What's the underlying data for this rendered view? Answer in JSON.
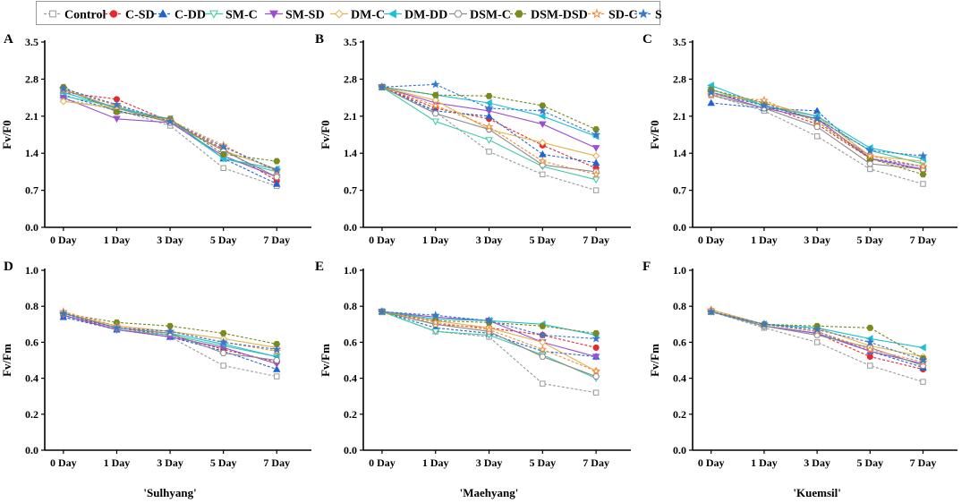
{
  "legend": [
    {
      "label": "Control",
      "color": "#9a9a9a",
      "marker": "square-open",
      "dash": "3,2"
    },
    {
      "label": "C-SD",
      "color": "#e8282b",
      "marker": "circle",
      "dash": "3,2"
    },
    {
      "label": "C-DD",
      "color": "#1f63d4",
      "marker": "triangle",
      "dash": "3,2"
    },
    {
      "label": "SM-C",
      "color": "#3ec9a7",
      "marker": "triangle-down-open",
      "dash": ""
    },
    {
      "label": "SM-SD",
      "color": "#9b4fd1",
      "marker": "triangle-down",
      "dash": ""
    },
    {
      "label": "DM-C",
      "color": "#e6b24a",
      "marker": "diamond-open",
      "dash": ""
    },
    {
      "label": "DM-DD",
      "color": "#1cbfd9",
      "marker": "triangle-left",
      "dash": ""
    },
    {
      "label": "DSM-C",
      "color": "#8a8a8a",
      "marker": "hexagon-open",
      "dash": ""
    },
    {
      "label": "DSM-DSD",
      "color": "#7a8a1e",
      "marker": "hexagon",
      "dash": "3,2"
    },
    {
      "label": "SD-C",
      "color": "#f08a3c",
      "marker": "star-open",
      "dash": "3,2"
    },
    {
      "label": "SD-SD",
      "color": "#3a78c8",
      "marker": "star",
      "dash": "3,2"
    }
  ],
  "chart_data": [
    {
      "panel": "A",
      "type": "line",
      "ylabel": "Fv/F0",
      "ylim": [
        0,
        3.5
      ],
      "yticks": [
        "0.0",
        "0.7",
        "1.4",
        "2.1",
        "2.8",
        "3.5"
      ],
      "categories": [
        "0 Day",
        "1 Day",
        "3 Day",
        "5 Day",
        "7 Day"
      ],
      "series": [
        {
          "name": "Control",
          "values": [
            2.42,
            2.22,
            1.92,
            1.12,
            0.78
          ]
        },
        {
          "name": "C-SD",
          "values": [
            2.55,
            2.42,
            2.0,
            1.48,
            0.88
          ]
        },
        {
          "name": "C-DD",
          "values": [
            2.5,
            2.2,
            2.0,
            1.3,
            0.82
          ]
        },
        {
          "name": "SM-C",
          "values": [
            2.48,
            2.28,
            2.0,
            1.3,
            1.05
          ]
        },
        {
          "name": "SM-SD",
          "values": [
            2.45,
            2.05,
            1.98,
            1.35,
            0.95
          ]
        },
        {
          "name": "DM-C",
          "values": [
            2.38,
            2.25,
            2.0,
            1.45,
            1.1
          ]
        },
        {
          "name": "DM-DD",
          "values": [
            2.55,
            2.25,
            2.05,
            1.3,
            1.1
          ]
        },
        {
          "name": "DSM-C",
          "values": [
            2.6,
            2.25,
            1.98,
            1.45,
            0.95
          ]
        },
        {
          "name": "DSM-DSD",
          "values": [
            2.65,
            2.18,
            2.05,
            1.38,
            1.25
          ]
        },
        {
          "name": "SD-C",
          "values": [
            2.6,
            2.3,
            2.02,
            1.55,
            1.05
          ]
        },
        {
          "name": "SD-SD",
          "values": [
            2.62,
            2.32,
            2.0,
            1.52,
            1.08
          ]
        }
      ]
    },
    {
      "panel": "B",
      "type": "line",
      "ylabel": "Fv/F0",
      "ylim": [
        0,
        3.5
      ],
      "yticks": [
        "0.0",
        "0.7",
        "1.4",
        "2.1",
        "2.8",
        "3.5"
      ],
      "categories": [
        "0 Day",
        "1 Day",
        "3 Day",
        "5 Day",
        "7 Day"
      ],
      "series": [
        {
          "name": "Control",
          "values": [
            2.65,
            2.18,
            1.43,
            1.0,
            0.7
          ]
        },
        {
          "name": "C-SD",
          "values": [
            2.65,
            2.25,
            2.05,
            1.55,
            1.12
          ]
        },
        {
          "name": "C-DD",
          "values": [
            2.65,
            2.2,
            2.1,
            1.38,
            1.22
          ]
        },
        {
          "name": "SM-C",
          "values": [
            2.65,
            2.0,
            1.65,
            1.15,
            0.9
          ]
        },
        {
          "name": "SM-SD",
          "values": [
            2.65,
            2.35,
            2.2,
            1.95,
            1.5
          ]
        },
        {
          "name": "DM-C",
          "values": [
            2.65,
            2.4,
            1.85,
            1.6,
            1.35
          ]
        },
        {
          "name": "DM-DD",
          "values": [
            2.65,
            2.5,
            2.35,
            2.1,
            1.72
          ]
        },
        {
          "name": "DSM-C",
          "values": [
            2.65,
            2.15,
            1.85,
            1.18,
            1.05
          ]
        },
        {
          "name": "DSM-DSD",
          "values": [
            2.65,
            2.5,
            2.48,
            2.3,
            1.85
          ]
        },
        {
          "name": "SD-C",
          "values": [
            2.65,
            2.3,
            1.9,
            1.25,
            1.0
          ]
        },
        {
          "name": "SD-SD",
          "values": [
            2.65,
            2.7,
            2.25,
            2.2,
            1.75
          ]
        }
      ]
    },
    {
      "panel": "C",
      "type": "line",
      "ylabel": "Fv/F0",
      "ylim": [
        0,
        3.5
      ],
      "yticks": [
        "0.0",
        "0.7",
        "1.4",
        "2.1",
        "2.8",
        "3.5"
      ],
      "categories": [
        "0 Day",
        "1 Day",
        "3 Day",
        "5 Day",
        "7 Day"
      ],
      "series": [
        {
          "name": "Control",
          "values": [
            2.5,
            2.2,
            1.72,
            1.1,
            0.82
          ]
        },
        {
          "name": "C-SD",
          "values": [
            2.55,
            2.3,
            1.95,
            1.3,
            1.08
          ]
        },
        {
          "name": "C-DD",
          "values": [
            2.35,
            2.25,
            2.2,
            1.3,
            1.15
          ]
        },
        {
          "name": "SM-C",
          "values": [
            2.6,
            2.3,
            2.05,
            1.45,
            1.2
          ]
        },
        {
          "name": "SM-SD",
          "values": [
            2.55,
            2.25,
            2.05,
            1.3,
            1.1
          ]
        },
        {
          "name": "DM-C",
          "values": [
            2.55,
            2.35,
            2.1,
            1.35,
            1.25
          ]
        },
        {
          "name": "DM-DD",
          "values": [
            2.68,
            2.3,
            2.1,
            1.5,
            1.3
          ]
        },
        {
          "name": "DSM-C",
          "values": [
            2.5,
            2.25,
            1.9,
            1.2,
            1.1
          ]
        },
        {
          "name": "DSM-DSD",
          "values": [
            2.6,
            2.35,
            2.0,
            1.3,
            1.0
          ]
        },
        {
          "name": "SD-C",
          "values": [
            2.5,
            2.4,
            2.0,
            1.35,
            1.15
          ]
        },
        {
          "name": "SD-SD",
          "values": [
            2.55,
            2.3,
            2.05,
            1.45,
            1.35
          ]
        }
      ]
    },
    {
      "panel": "D",
      "type": "line",
      "ylabel": "Fv/Fm",
      "ylim": [
        0,
        1.0
      ],
      "yticks": [
        "0.0",
        "0.2",
        "0.4",
        "0.6",
        "0.8",
        "1.0"
      ],
      "categories": [
        "0 Day",
        "1 Day",
        "3 Day",
        "5 Day",
        "7 Day"
      ],
      "xlabel": "'Sulhyang'",
      "series": [
        {
          "name": "Control",
          "values": [
            0.74,
            0.67,
            0.63,
            0.47,
            0.41
          ]
        },
        {
          "name": "C-SD",
          "values": [
            0.75,
            0.68,
            0.64,
            0.56,
            0.49
          ]
        },
        {
          "name": "C-DD",
          "values": [
            0.74,
            0.67,
            0.63,
            0.55,
            0.45
          ]
        },
        {
          "name": "SM-C",
          "values": [
            0.75,
            0.67,
            0.64,
            0.58,
            0.52
          ]
        },
        {
          "name": "SM-SD",
          "values": [
            0.75,
            0.67,
            0.63,
            0.57,
            0.48
          ]
        },
        {
          "name": "DM-C",
          "values": [
            0.76,
            0.69,
            0.66,
            0.62,
            0.57
          ]
        },
        {
          "name": "DM-DD",
          "values": [
            0.76,
            0.68,
            0.65,
            0.59,
            0.52
          ]
        },
        {
          "name": "DSM-C",
          "values": [
            0.76,
            0.68,
            0.65,
            0.54,
            0.5
          ]
        },
        {
          "name": "DSM-DSD",
          "values": [
            0.76,
            0.71,
            0.69,
            0.65,
            0.59
          ]
        },
        {
          "name": "SD-C",
          "values": [
            0.77,
            0.69,
            0.66,
            0.6,
            0.55
          ]
        },
        {
          "name": "SD-SD",
          "values": [
            0.76,
            0.68,
            0.66,
            0.6,
            0.56
          ]
        }
      ]
    },
    {
      "panel": "E",
      "type": "line",
      "ylabel": "Fv/Fm",
      "ylim": [
        0,
        1.0
      ],
      "yticks": [
        "0.0",
        "0.2",
        "0.4",
        "0.6",
        "0.8",
        "1.0"
      ],
      "categories": [
        "0 Day",
        "1 Day",
        "3 Day",
        "5 Day",
        "7 Day"
      ],
      "xlabel": "'Maehyang'",
      "series": [
        {
          "name": "Control",
          "values": [
            0.77,
            0.66,
            0.63,
            0.37,
            0.32
          ]
        },
        {
          "name": "C-SD",
          "values": [
            0.77,
            0.7,
            0.68,
            0.64,
            0.57
          ]
        },
        {
          "name": "C-DD",
          "values": [
            0.77,
            0.68,
            0.65,
            0.55,
            0.52
          ]
        },
        {
          "name": "SM-C",
          "values": [
            0.77,
            0.66,
            0.64,
            0.53,
            0.4
          ]
        },
        {
          "name": "SM-SD",
          "values": [
            0.77,
            0.74,
            0.72,
            0.6,
            0.52
          ]
        },
        {
          "name": "DM-C",
          "values": [
            0.77,
            0.72,
            0.68,
            0.6,
            0.44
          ]
        },
        {
          "name": "DM-DD",
          "values": [
            0.77,
            0.73,
            0.72,
            0.7,
            0.64
          ]
        },
        {
          "name": "DSM-C",
          "values": [
            0.77,
            0.7,
            0.66,
            0.52,
            0.41
          ]
        },
        {
          "name": "DSM-DSD",
          "values": [
            0.77,
            0.72,
            0.71,
            0.69,
            0.65
          ]
        },
        {
          "name": "SD-C",
          "values": [
            0.77,
            0.71,
            0.67,
            0.56,
            0.44
          ]
        },
        {
          "name": "SD-SD",
          "values": [
            0.77,
            0.75,
            0.72,
            0.64,
            0.62
          ]
        }
      ]
    },
    {
      "panel": "F",
      "type": "line",
      "ylabel": "Fv/Fm",
      "ylim": [
        0,
        1.0
      ],
      "yticks": [
        "0.0",
        "0.2",
        "0.4",
        "0.6",
        "0.8",
        "1.0"
      ],
      "categories": [
        "0 Day",
        "1 Day",
        "3 Day",
        "5 Day",
        "7 Day"
      ],
      "xlabel": "'Kuemsil'",
      "series": [
        {
          "name": "Control",
          "values": [
            0.77,
            0.68,
            0.6,
            0.47,
            0.38
          ]
        },
        {
          "name": "C-SD",
          "values": [
            0.77,
            0.69,
            0.65,
            0.52,
            0.45
          ]
        },
        {
          "name": "C-DD",
          "values": [
            0.77,
            0.7,
            0.66,
            0.55,
            0.46
          ]
        },
        {
          "name": "SM-C",
          "values": [
            0.77,
            0.69,
            0.65,
            0.55,
            0.48
          ]
        },
        {
          "name": "SM-SD",
          "values": [
            0.77,
            0.69,
            0.65,
            0.55,
            0.48
          ]
        },
        {
          "name": "DM-C",
          "values": [
            0.78,
            0.7,
            0.68,
            0.58,
            0.52
          ]
        },
        {
          "name": "DM-DD",
          "values": [
            0.77,
            0.7,
            0.68,
            0.62,
            0.57
          ]
        },
        {
          "name": "DSM-C",
          "values": [
            0.77,
            0.69,
            0.64,
            0.57,
            0.47
          ]
        },
        {
          "name": "DSM-DSD",
          "values": [
            0.77,
            0.7,
            0.69,
            0.68,
            0.51
          ]
        },
        {
          "name": "SD-C",
          "values": [
            0.78,
            0.7,
            0.66,
            0.56,
            0.49
          ]
        },
        {
          "name": "SD-SD",
          "values": [
            0.77,
            0.7,
            0.67,
            0.6,
            0.5
          ]
        }
      ]
    }
  ]
}
